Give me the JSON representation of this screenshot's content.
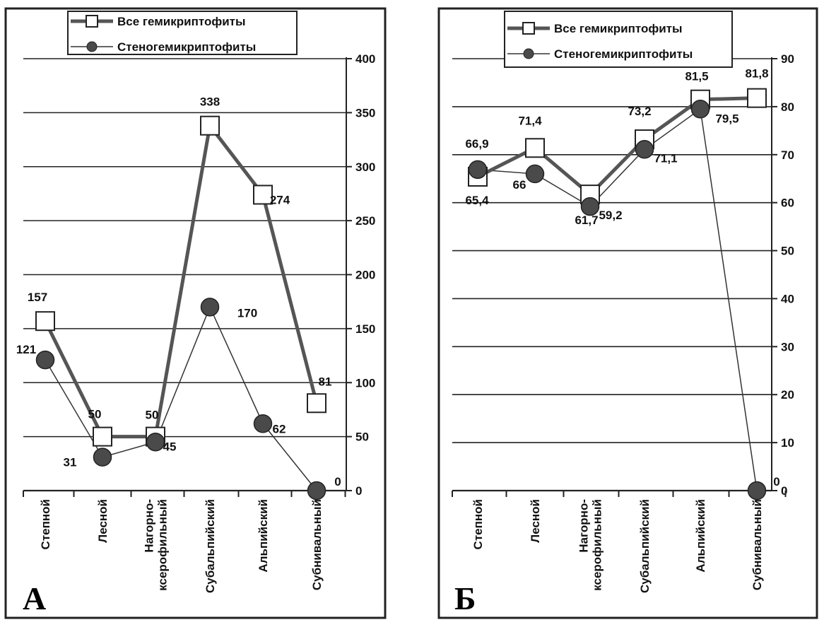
{
  "chart_data": [
    {
      "panel": "А",
      "type": "line",
      "categories": [
        "Степной",
        "Лесной",
        "Нагорно-ксерофильный",
        "Субальпийский",
        "Альпийский",
        "Субнивальный"
      ],
      "category_lines": [
        [
          "Степной"
        ],
        [
          "Лесной"
        ],
        [
          "Нагорно-",
          "ксерофильный"
        ],
        [
          "Субальпийский"
        ],
        [
          "Альпийский"
        ],
        [
          "Субнивальный"
        ]
      ],
      "series": [
        {
          "name": "Все гемикриптофиты",
          "values": [
            157,
            50,
            50,
            338,
            274,
            81
          ],
          "labels": [
            "157",
            "50",
            "50",
            "338",
            "274",
            "81"
          ],
          "marker": "square",
          "line": "thick",
          "color": "#5a5a5a"
        },
        {
          "name": "Стеногемикриптофиты",
          "values": [
            121,
            31,
            45,
            170,
            62,
            0
          ],
          "labels": [
            "121",
            "31",
            "45",
            "170",
            "62",
            "0"
          ],
          "marker": "circle",
          "line": "thin",
          "color": "#4a4a4a"
        }
      ],
      "ylim": [
        0,
        400
      ],
      "yticks": [
        0,
        50,
        100,
        150,
        200,
        250,
        300,
        350,
        400
      ],
      "ytick_labels": [
        "0",
        "50",
        "100",
        "150",
        "200",
        "250",
        "300",
        "350",
        "400"
      ],
      "grid": true,
      "legend": "top-left",
      "y_axis_side": "right"
    },
    {
      "panel": "Б",
      "type": "line",
      "categories": [
        "Степной",
        "Лесной",
        "Нагорно-ксерофильный",
        "Субальпийский",
        "Альпийский",
        "Субнивальный"
      ],
      "category_lines": [
        [
          "Степной"
        ],
        [
          "Лесной"
        ],
        [
          "Нагорно-",
          "ксерофильный"
        ],
        [
          "Субальпийский"
        ],
        [
          "Альпийский"
        ],
        [
          "Субнивальный"
        ]
      ],
      "series": [
        {
          "name": "Все гемикриптофиты",
          "values": [
            65.4,
            71.4,
            61.7,
            73.2,
            81.5,
            81.8
          ],
          "labels": [
            "65,4",
            "71,4",
            "61,7",
            "73,2",
            "81,5",
            "81,8"
          ],
          "marker": "square",
          "line": "thick",
          "color": "#5a5a5a"
        },
        {
          "name": "Стеногемикриптофиты",
          "values": [
            66.9,
            66,
            59.2,
            71.1,
            79.5,
            0
          ],
          "labels": [
            "66,9",
            "66",
            "59,2",
            "71,1",
            "79,5",
            "0"
          ],
          "marker": "circle",
          "line": "thin",
          "color": "#4a4a4a"
        }
      ],
      "ylim": [
        0,
        90
      ],
      "yticks": [
        0,
        10,
        20,
        30,
        40,
        50,
        60,
        70,
        80,
        90
      ],
      "ytick_labels": [
        "0",
        "10",
        "20",
        "30",
        "40",
        "50",
        "60",
        "70",
        "80",
        "90"
      ],
      "grid": true,
      "legend": "top-left",
      "y_axis_side": "right"
    }
  ]
}
